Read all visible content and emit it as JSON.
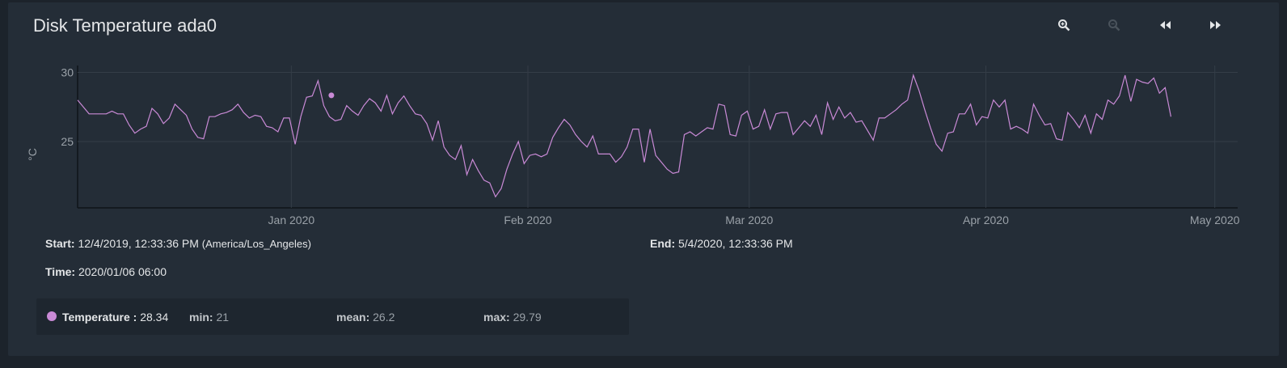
{
  "title": "Disk Temperature ada0",
  "toolbar": [
    "zoom-in-icon",
    "zoom-out-icon",
    "rewind-icon",
    "fast-forward-icon"
  ],
  "start_label": "Start:",
  "start_value": "12/4/2019, 12:33:36 PM",
  "start_tz": "(America/Los_Angeles)",
  "end_label": "End:",
  "end_value": "5/4/2020, 12:33:36 PM",
  "time_label": "Time:",
  "time_value": "2020/01/06 06:00",
  "legend": {
    "series_label": "Temperature :",
    "series_value": "28.34",
    "min_label": "min:",
    "min_value": "21",
    "mean_label": "mean:",
    "mean_value": "26.2",
    "max_label": "max:",
    "max_value": "29.79"
  },
  "colors": {
    "series": "#c98ad6",
    "background": "#242d37"
  },
  "chart_data": {
    "type": "line",
    "title": "Disk Temperature ada0",
    "ylabel": "°C",
    "xlabel": "",
    "x_ticks": [
      "Jan 2020",
      "Feb 2020",
      "Mar 2020",
      "Apr 2020",
      "May 2020"
    ],
    "x_tick_dates": [
      "2020-01-01",
      "2020-02-01",
      "2020-03-01",
      "2020-04-01",
      "2020-05-01"
    ],
    "y_ticks": [
      25,
      30
    ],
    "ylim": [
      20.2,
      30.5
    ],
    "xlim": [
      "2019-12-04",
      "2020-05-04"
    ],
    "grid": true,
    "highlight": {
      "x": "2020-01-06 06:00",
      "y": 28.34
    },
    "series": [
      {
        "name": "Temperature",
        "x_start": "2019-12-04",
        "step_hours": 18,
        "values": [
          28.0,
          27.5,
          27.0,
          27.0,
          27.0,
          27.0,
          27.2,
          27.0,
          27.0,
          26.2,
          25.6,
          25.9,
          26.1,
          27.4,
          27.0,
          26.3,
          26.7,
          27.7,
          27.3,
          26.9,
          25.9,
          25.3,
          25.2,
          26.8,
          26.8,
          27.0,
          27.1,
          27.3,
          27.7,
          27.1,
          26.7,
          26.9,
          26.8,
          26.1,
          26.0,
          25.7,
          26.7,
          26.7,
          24.8,
          26.8,
          28.2,
          28.3,
          29.4,
          27.6,
          26.8,
          26.5,
          26.6,
          27.6,
          27.2,
          26.9,
          27.6,
          28.1,
          27.8,
          27.2,
          28.34,
          27.0,
          27.8,
          28.3,
          27.6,
          27.0,
          26.9,
          26.3,
          25.1,
          26.5,
          24.6,
          24.0,
          23.7,
          24.7,
          22.6,
          23.7,
          22.9,
          22.2,
          22.0,
          21.0,
          21.6,
          23.0,
          24.1,
          25.0,
          23.4,
          24.0,
          24.1,
          23.9,
          24.1,
          25.3,
          26.0,
          26.6,
          26.2,
          25.5,
          25.0,
          24.6,
          25.4,
          24.1,
          24.1,
          24.1,
          23.5,
          23.9,
          24.6,
          25.9,
          25.9,
          23.5,
          25.9,
          24.0,
          23.5,
          23.0,
          22.7,
          22.8,
          25.5,
          25.7,
          25.4,
          25.7,
          26.0,
          25.9,
          27.7,
          27.6,
          25.5,
          25.4,
          26.9,
          27.2,
          25.9,
          26.1,
          27.3,
          25.9,
          27.0,
          27.1,
          27.1,
          25.5,
          26.0,
          26.5,
          26.1,
          26.9,
          25.5,
          27.8,
          26.6,
          27.5,
          26.7,
          27.1,
          26.4,
          26.5,
          25.8,
          25.1,
          26.7,
          26.7,
          27.0,
          27.3,
          27.7,
          28.0,
          29.8,
          28.7,
          27.3,
          26.0,
          24.8,
          24.3,
          25.6,
          25.7,
          27.0,
          27.0,
          27.7,
          26.2,
          26.8,
          26.7,
          28.0,
          27.5,
          28.0,
          25.9,
          26.1,
          25.9,
          25.6,
          27.7,
          26.9,
          26.2,
          26.3,
          25.2,
          25.1,
          27.1,
          26.6,
          26.0,
          26.9,
          25.6,
          27.0,
          26.6,
          28.0,
          27.7,
          28.3,
          29.8,
          27.9,
          29.5,
          29.3,
          29.2,
          29.6,
          28.5,
          28.9,
          26.8
        ]
      }
    ]
  }
}
